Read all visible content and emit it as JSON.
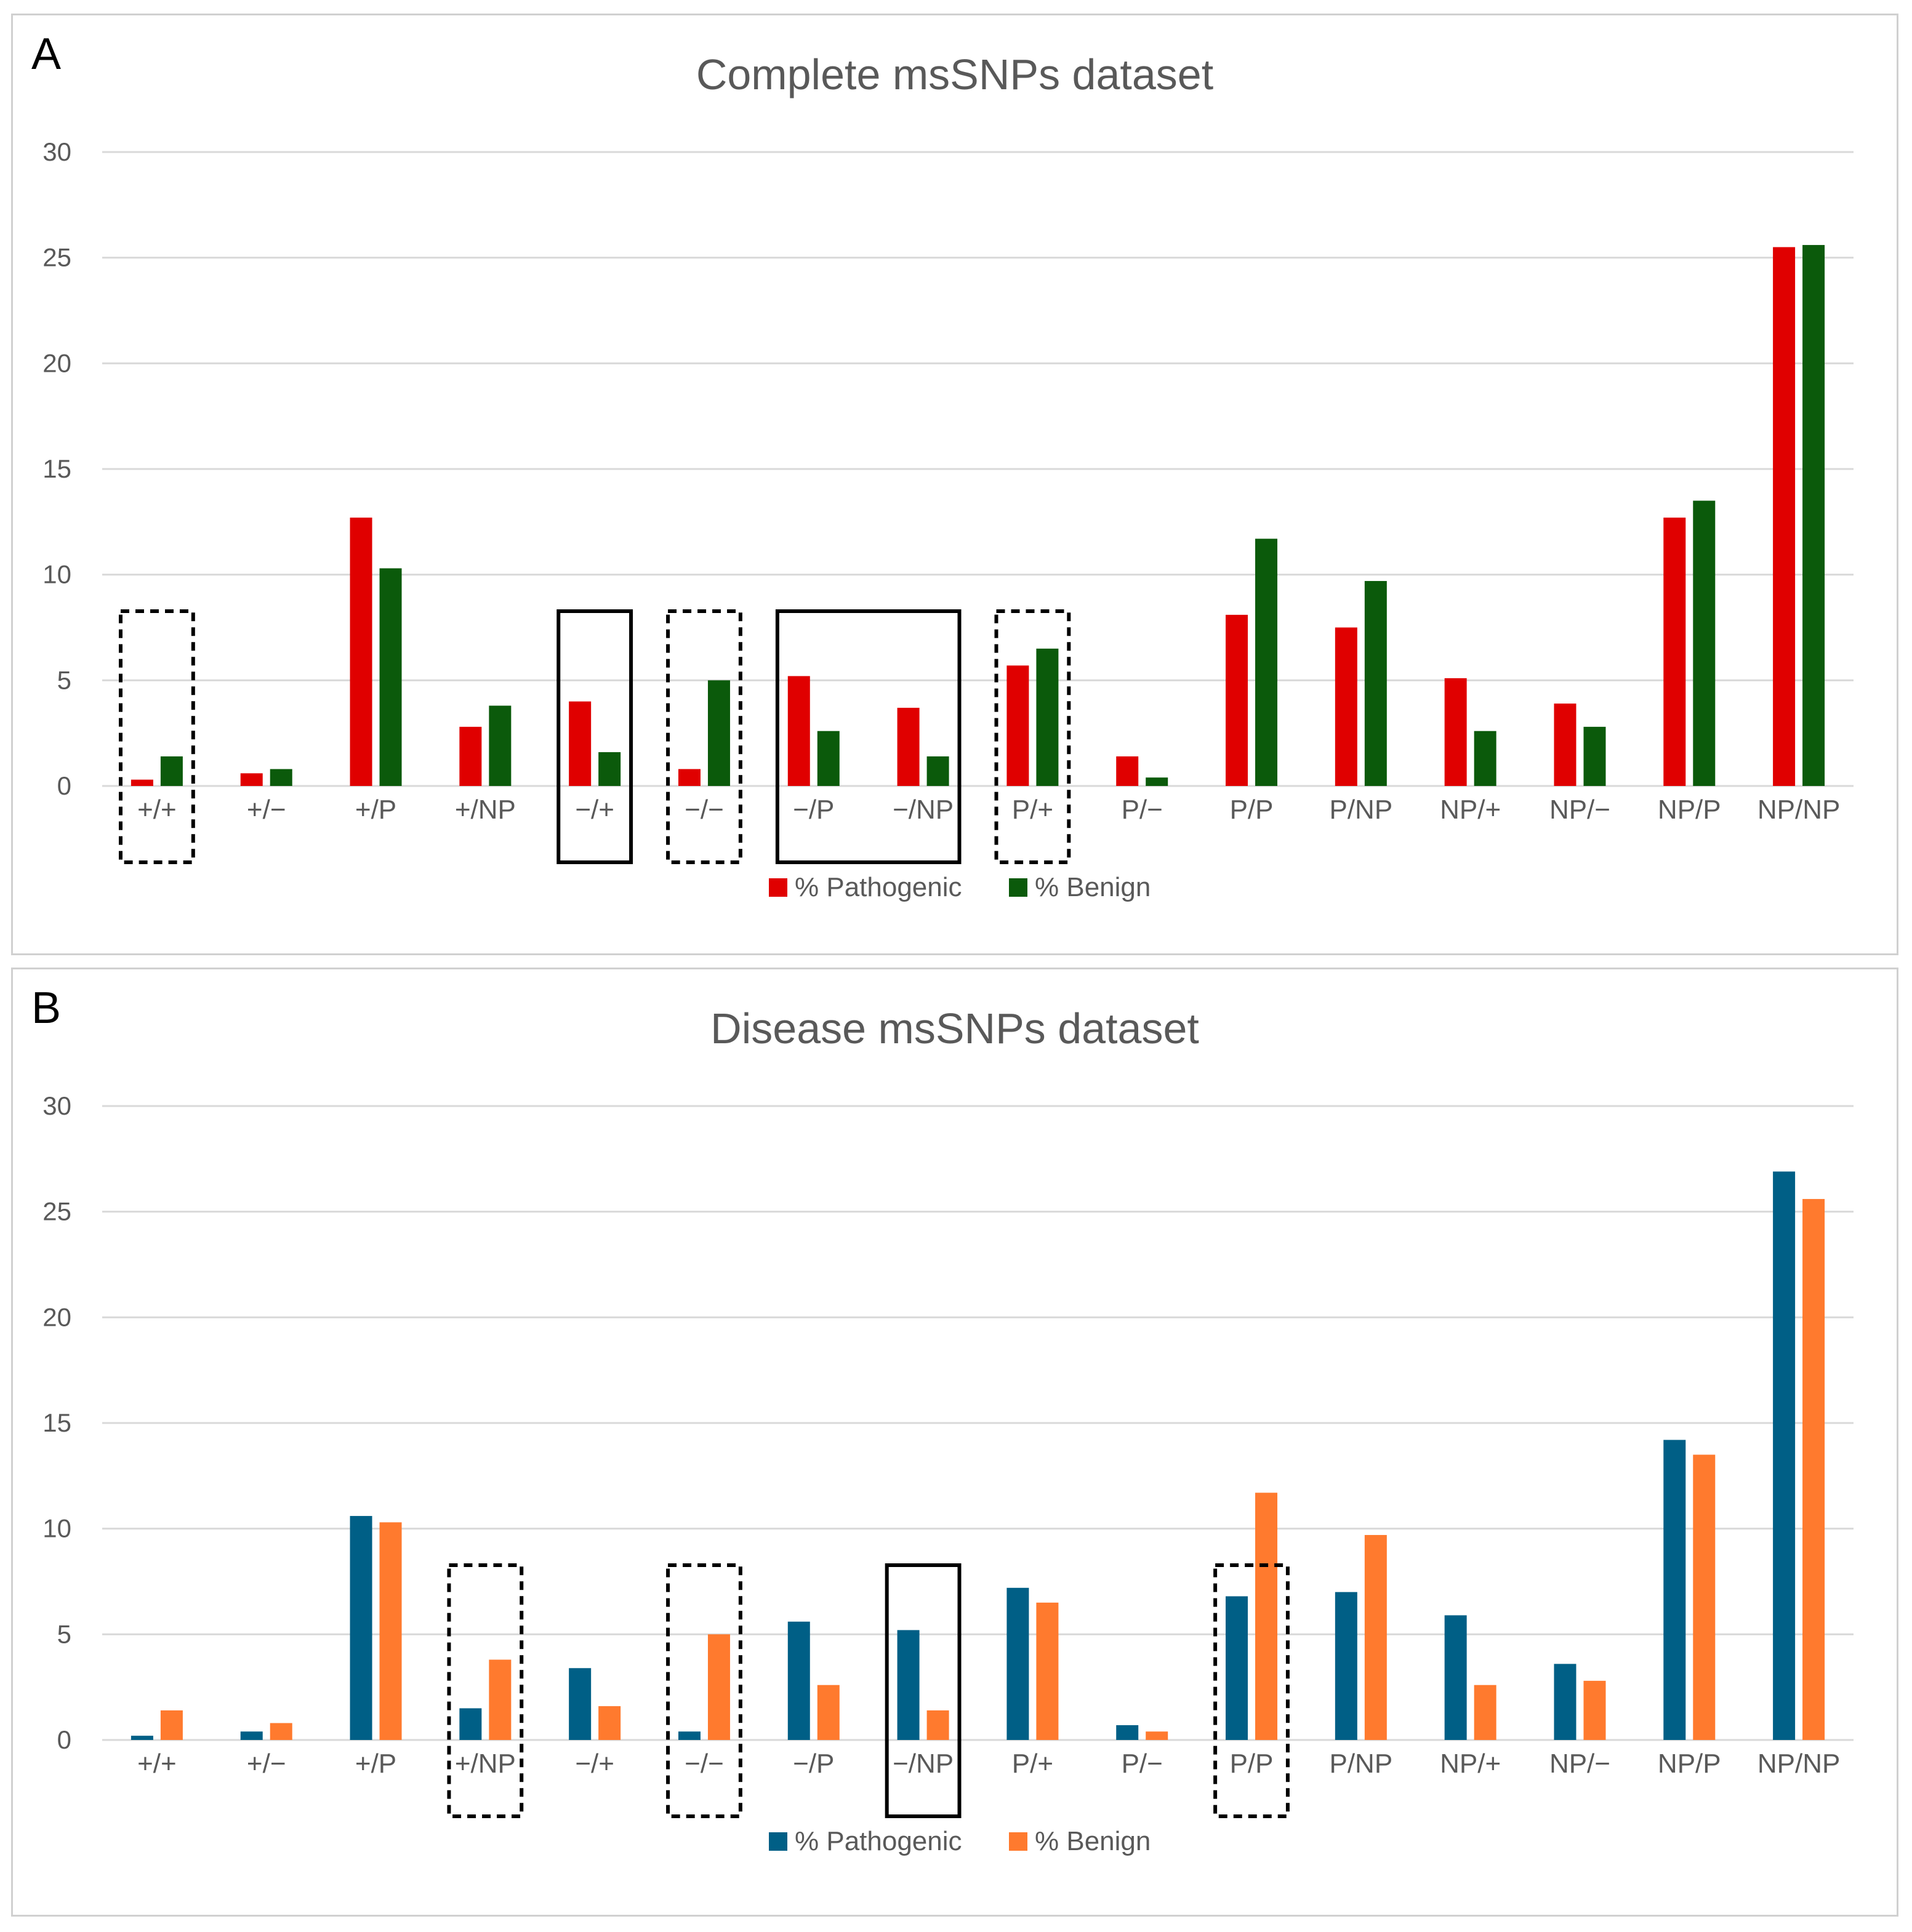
{
  "chart_data": [
    {
      "type": "bar",
      "panel_label": "A",
      "title": "Complete msSNPs dataset",
      "categories": [
        "+/+",
        "+/−",
        "+/P",
        "+/NP",
        "−/+",
        "−/−",
        "−/P",
        "−/NP",
        "P/+",
        "P/−",
        "P/P",
        "P/NP",
        "NP/+",
        "NP/−",
        "NP/P",
        "NP/NP"
      ],
      "series": [
        {
          "name": "% Pathogenic",
          "color": "#e00000",
          "values": [
            0.3,
            0.6,
            12.7,
            2.8,
            4.0,
            0.8,
            5.2,
            3.7,
            5.7,
            1.4,
            8.1,
            7.5,
            5.1,
            3.9,
            12.7,
            25.5
          ]
        },
        {
          "name": "% Benign",
          "color": "#0b5a0b",
          "values": [
            1.4,
            0.8,
            10.3,
            3.8,
            1.6,
            5.0,
            2.6,
            1.4,
            6.5,
            0.4,
            11.7,
            9.7,
            2.6,
            2.8,
            13.5,
            25.6
          ]
        }
      ],
      "ylim": [
        0,
        30
      ],
      "yticks": [
        0,
        5,
        10,
        15,
        20,
        25,
        30
      ],
      "xlabel": "",
      "ylabel": "",
      "legend": "bottom-center",
      "grid": true,
      "highlight_boxes": [
        {
          "categories": [
            "+/+"
          ],
          "style": "dashed"
        },
        {
          "categories": [
            "−/+"
          ],
          "style": "solid"
        },
        {
          "categories": [
            "−/−"
          ],
          "style": "dashed"
        },
        {
          "categories": [
            "−/P",
            "−/NP"
          ],
          "style": "solid"
        },
        {
          "categories": [
            "P/+"
          ],
          "style": "dashed"
        }
      ]
    },
    {
      "type": "bar",
      "panel_label": "B",
      "title": "Disease msSNPs dataset",
      "categories": [
        "+/+",
        "+/−",
        "+/P",
        "+/NP",
        "−/+",
        "−/−",
        "−/P",
        "−/NP",
        "P/+",
        "P/−",
        "P/P",
        "P/NP",
        "NP/+",
        "NP/−",
        "NP/P",
        "NP/NP"
      ],
      "series": [
        {
          "name": "% Pathogenic",
          "color": "#005f86",
          "values": [
            0.2,
            0.4,
            10.6,
            1.5,
            3.4,
            0.4,
            5.6,
            5.2,
            7.2,
            0.7,
            6.8,
            7.0,
            5.9,
            3.6,
            14.2,
            26.9
          ]
        },
        {
          "name": "% Benign",
          "color": "#ff7a2e",
          "values": [
            1.4,
            0.8,
            10.3,
            3.8,
            1.6,
            5.0,
            2.6,
            1.4,
            6.5,
            0.4,
            11.7,
            9.7,
            2.6,
            2.8,
            13.5,
            25.6
          ]
        }
      ],
      "ylim": [
        0,
        30
      ],
      "yticks": [
        0,
        5,
        10,
        15,
        20,
        25,
        30
      ],
      "xlabel": "",
      "ylabel": "",
      "legend": "bottom-center",
      "grid": true,
      "highlight_boxes": [
        {
          "categories": [
            "+/NP"
          ],
          "style": "dashed"
        },
        {
          "categories": [
            "−/−"
          ],
          "style": "dashed"
        },
        {
          "categories": [
            "−/NP"
          ],
          "style": "solid"
        },
        {
          "categories": [
            "P/P"
          ],
          "style": "dashed"
        }
      ]
    }
  ]
}
